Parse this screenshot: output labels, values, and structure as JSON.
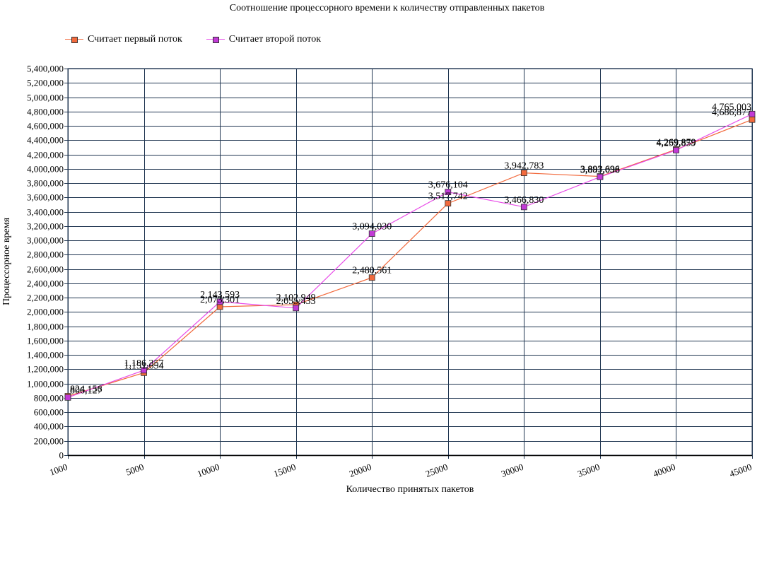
{
  "chart_data": {
    "type": "line",
    "title": "Соотношение процессорного времени к количеству отправленных пакетов",
    "xlabel": "Количество принятых пакетов",
    "ylabel": "Процессорное время",
    "categories": [
      "1000",
      "5000",
      "10000",
      "15000",
      "20000",
      "25000",
      "30000",
      "35000",
      "40000",
      "45000"
    ],
    "ylim": [
      0,
      5400000
    ],
    "ytick_step": 200000,
    "grid": true,
    "legend_position": "top-left",
    "series": [
      {
        "name": "Считает первый поток",
        "color": "#f26a3d",
        "marker_color": "#f26a3d",
        "values": [
          824156,
          1151654,
          2073301,
          2102949,
          2480561,
          3517742,
          3942783,
          3893696,
          4269879,
          4686877
        ],
        "labels": [
          "824,156",
          "1,151,654",
          "2,073,301",
          "2,102,949",
          "2,480,561",
          "3,517,742",
          "3,942,783",
          "3,893,696",
          "4,269,879",
          "4,686,877"
        ]
      },
      {
        "name": "Считает второй поток",
        "color": "#e84ce8",
        "marker_color": "#c23ad6",
        "values": [
          806127,
          1186357,
          2143593,
          2055433,
          3094030,
          3676104,
          3466830,
          3887038,
          4259859,
          4765003
        ],
        "labels": [
          "806,127",
          "1,186,357",
          "2,143,593",
          "2,055,433",
          "3,094,030",
          "3,676,104",
          "3,466,830",
          "3,887,038",
          "4,259,859",
          "4,765,003"
        ]
      }
    ]
  }
}
